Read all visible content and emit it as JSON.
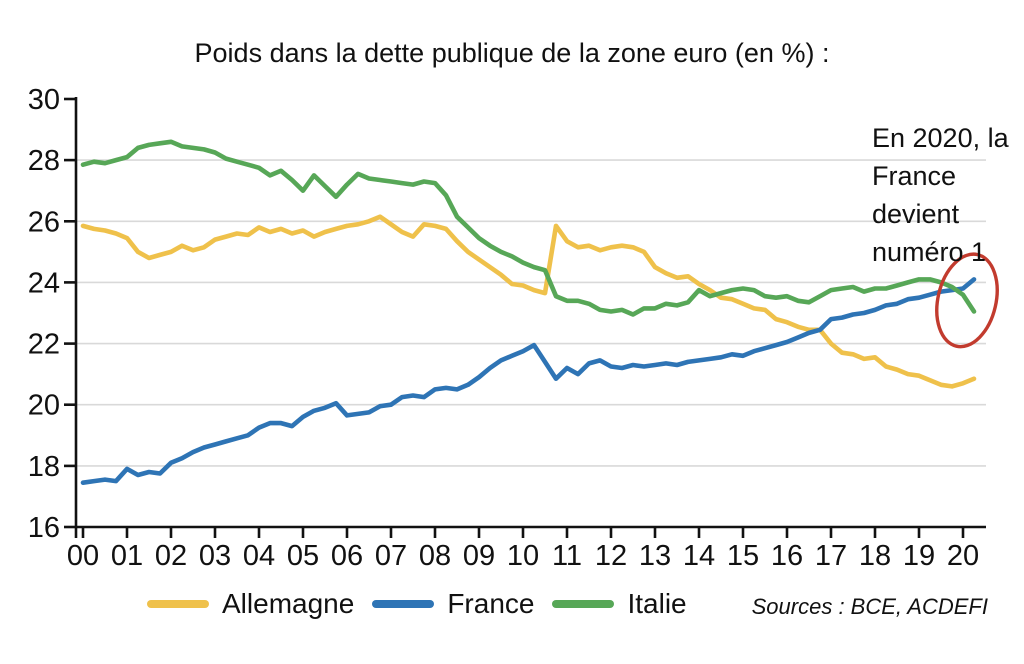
{
  "chart_data": {
    "type": "line",
    "title": "Poids dans la dette publique de la zone euro (en %) :",
    "sources": "Sources : BCE, ACDEFI",
    "legend_position": "bottom",
    "grid": true,
    "grid_color": "#D9D9D9",
    "axis_color": "#111111",
    "y_axis": {
      "min": 16,
      "max": 30,
      "tick_step": 2
    },
    "x_axis": {
      "tick_labels": [
        "00",
        "01",
        "02",
        "03",
        "04",
        "05",
        "06",
        "07",
        "08",
        "09",
        "10",
        "11",
        "12",
        "13",
        "14",
        "15",
        "16",
        "17",
        "18",
        "19",
        "20"
      ]
    },
    "points_per_year": 4,
    "annotation": {
      "lines": [
        "En 2020, la",
        "France",
        "devient",
        "numéro 1"
      ],
      "ellipse_color": "#C23B2E"
    },
    "series": [
      {
        "name": "Allemagne",
        "color": "#EFC14B",
        "values": [
          25.85,
          25.75,
          25.7,
          25.6,
          25.45,
          25.0,
          24.8,
          24.9,
          25.0,
          25.2,
          25.05,
          25.15,
          25.4,
          25.5,
          25.6,
          25.55,
          25.8,
          25.65,
          25.75,
          25.6,
          25.7,
          25.5,
          25.65,
          25.75,
          25.85,
          25.9,
          26.0,
          26.15,
          25.9,
          25.65,
          25.5,
          25.9,
          25.85,
          25.75,
          25.35,
          25.0,
          24.75,
          24.5,
          24.25,
          23.95,
          23.9,
          23.75,
          23.65,
          25.85,
          25.35,
          25.15,
          25.2,
          25.05,
          25.15,
          25.2,
          25.15,
          25.0,
          24.5,
          24.3,
          24.15,
          24.2,
          23.95,
          23.75,
          23.5,
          23.45,
          23.3,
          23.15,
          23.1,
          22.8,
          22.7,
          22.55,
          22.45,
          22.45,
          22.0,
          21.7,
          21.65,
          21.5,
          21.55,
          21.25,
          21.15,
          21.0,
          20.95,
          20.8,
          20.65,
          20.6,
          20.7,
          20.85
        ]
      },
      {
        "name": "France",
        "color": "#2E74B5",
        "values": [
          17.45,
          17.5,
          17.55,
          17.5,
          17.9,
          17.7,
          17.8,
          17.75,
          18.1,
          18.25,
          18.45,
          18.6,
          18.7,
          18.8,
          18.9,
          19.0,
          19.25,
          19.4,
          19.4,
          19.3,
          19.6,
          19.8,
          19.9,
          20.05,
          19.65,
          19.7,
          19.75,
          19.95,
          20.0,
          20.25,
          20.3,
          20.25,
          20.5,
          20.55,
          20.5,
          20.65,
          20.9,
          21.2,
          21.45,
          21.6,
          21.75,
          21.95,
          21.4,
          20.85,
          21.2,
          21.0,
          21.35,
          21.45,
          21.25,
          21.2,
          21.3,
          21.25,
          21.3,
          21.35,
          21.3,
          21.4,
          21.45,
          21.5,
          21.55,
          21.65,
          21.6,
          21.75,
          21.85,
          21.95,
          22.05,
          22.2,
          22.35,
          22.45,
          22.8,
          22.85,
          22.95,
          23.0,
          23.1,
          23.25,
          23.3,
          23.45,
          23.5,
          23.6,
          23.7,
          23.75,
          23.8,
          24.1
        ]
      },
      {
        "name": "Italie",
        "color": "#57A757",
        "values": [
          27.85,
          27.95,
          27.9,
          28.0,
          28.1,
          28.4,
          28.5,
          28.55,
          28.6,
          28.45,
          28.4,
          28.35,
          28.25,
          28.05,
          27.95,
          27.85,
          27.75,
          27.5,
          27.65,
          27.35,
          27.0,
          27.5,
          27.15,
          26.8,
          27.2,
          27.55,
          27.4,
          27.35,
          27.3,
          27.25,
          27.2,
          27.3,
          27.25,
          26.85,
          26.15,
          25.8,
          25.45,
          25.2,
          25.0,
          24.85,
          24.65,
          24.5,
          24.4,
          23.55,
          23.4,
          23.4,
          23.3,
          23.1,
          23.05,
          23.1,
          22.95,
          23.15,
          23.15,
          23.3,
          23.25,
          23.35,
          23.75,
          23.55,
          23.65,
          23.75,
          23.8,
          23.75,
          23.55,
          23.5,
          23.55,
          23.4,
          23.35,
          23.55,
          23.75,
          23.8,
          23.85,
          23.7,
          23.8,
          23.8,
          23.9,
          24.0,
          24.1,
          24.1,
          24.0,
          23.85,
          23.6,
          23.05
        ]
      }
    ]
  }
}
